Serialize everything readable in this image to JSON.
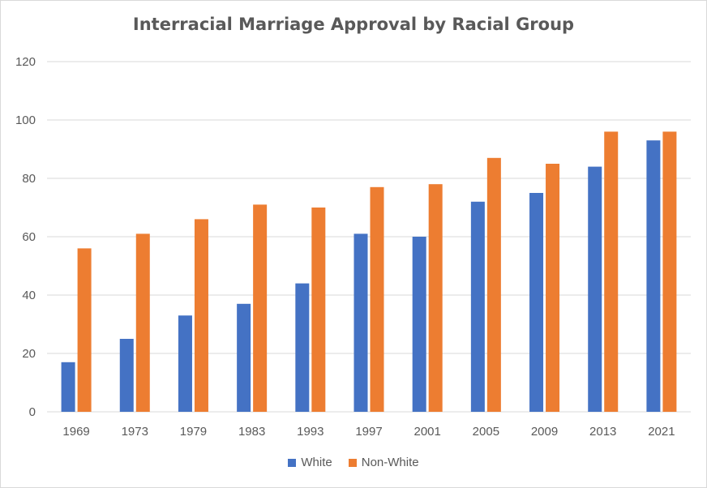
{
  "chart_data": {
    "type": "bar",
    "title": "Interracial Marriage Approval by Racial Group",
    "xlabel": "",
    "ylabel": "",
    "categories": [
      "1969",
      "1973",
      "1979",
      "1983",
      "1993",
      "1997",
      "2001",
      "2005",
      "2009",
      "2013",
      "2021"
    ],
    "series": [
      {
        "name": "White",
        "color": "#4472C4",
        "values": [
          17,
          25,
          33,
          37,
          44,
          61,
          60,
          72,
          75,
          84,
          93
        ]
      },
      {
        "name": "Non-White",
        "color": "#ED7D31",
        "values": [
          56,
          61,
          66,
          71,
          70,
          77,
          78,
          87,
          85,
          96,
          96
        ]
      }
    ],
    "ylim": [
      0,
      120
    ],
    "yticks": [
      0,
      20,
      40,
      60,
      80,
      100,
      120
    ],
    "grid": true,
    "legend_position": "bottom"
  }
}
